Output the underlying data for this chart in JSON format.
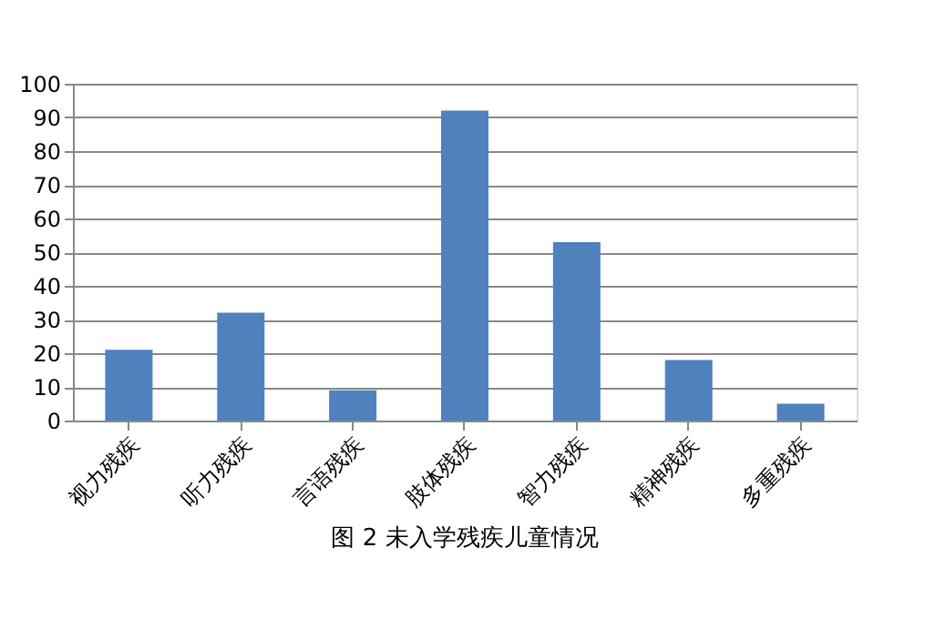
{
  "chart_data": {
    "type": "bar",
    "title": "图 2   未入学残疾儿童情况",
    "categories": [
      "视力残疾",
      "听力残疾",
      "言语残疾",
      "肢体残疾",
      "智力残疾",
      "精神残疾",
      "多重残疾"
    ],
    "values": [
      21,
      32,
      9,
      92,
      53,
      18,
      5
    ],
    "color": "#4f81bd",
    "ylim": [
      0,
      100
    ],
    "yticks": [
      0,
      10,
      20,
      30,
      40,
      50,
      60,
      70,
      80,
      90,
      100
    ],
    "grid": "y"
  }
}
